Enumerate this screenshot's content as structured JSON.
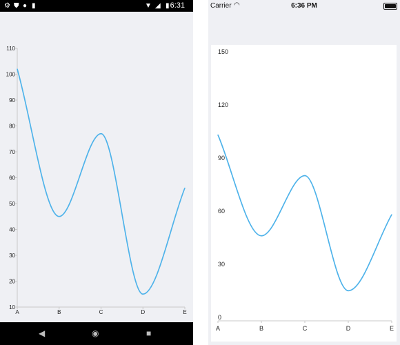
{
  "android": {
    "status_bar": {
      "time": "6:31",
      "icons": [
        "gear-icon",
        "shield-icon",
        "circle-icon",
        "sd-card-icon",
        "wifi-icon",
        "signal-icon",
        "battery-icon"
      ]
    },
    "nav_bar": {
      "buttons": [
        "back-icon",
        "home-icon",
        "recents-icon"
      ]
    }
  },
  "ios": {
    "status_bar": {
      "carrier": "Carrier",
      "time": "6:36 PM",
      "icons": [
        "wifi-icon",
        "battery-icon"
      ]
    }
  },
  "colors": {
    "line": "#4fb3ea",
    "axis": "#c8c8c8"
  },
  "chart_data": [
    {
      "type": "line",
      "categories": [
        "A",
        "B",
        "C",
        "D",
        "E"
      ],
      "values": [
        102,
        45,
        77,
        15,
        56
      ],
      "ylim": [
        10,
        110
      ],
      "yticks": [
        10,
        20,
        30,
        40,
        50,
        60,
        70,
        80,
        90,
        100,
        110
      ],
      "title": "",
      "xlabel": "",
      "ylabel": ""
    },
    {
      "type": "line",
      "categories": [
        "A",
        "B",
        "C",
        "D",
        "E"
      ],
      "values": [
        105,
        48,
        82,
        17,
        60
      ],
      "ylim": [
        0,
        150
      ],
      "yticks": [
        0,
        30,
        60,
        90,
        120,
        150
      ],
      "title": "",
      "xlabel": "",
      "ylabel": ""
    }
  ]
}
